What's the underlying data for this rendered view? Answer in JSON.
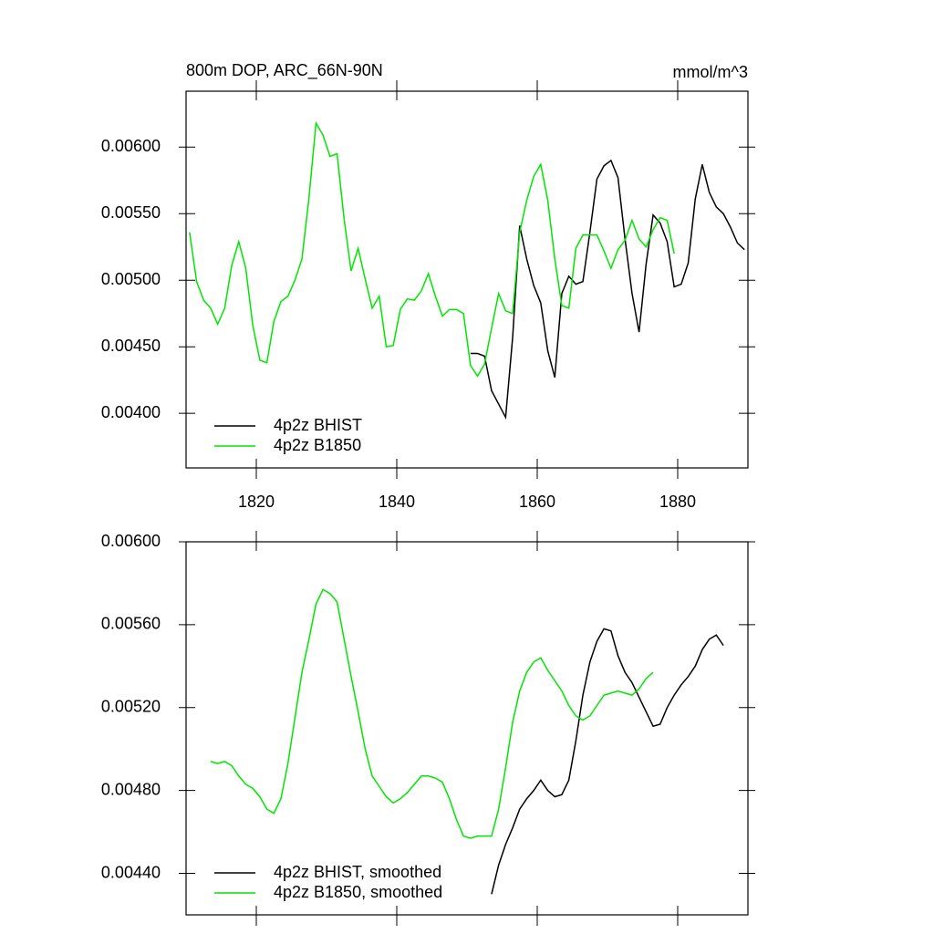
{
  "chart_data": [
    {
      "type": "line",
      "title": "800m DOP, ARC_66N-90N",
      "units": "mmol/m^3",
      "x": [
        1810.5,
        1811.5,
        1812.5,
        1813.5,
        1814.5,
        1815.5,
        1816.5,
        1817.5,
        1818.5,
        1819.5,
        1820.5,
        1821.5,
        1822.5,
        1823.5,
        1824.5,
        1825.5,
        1826.5,
        1827.5,
        1828.5,
        1829.5,
        1830.5,
        1831.5,
        1832.5,
        1833.5,
        1834.5,
        1835.5,
        1836.5,
        1837.5,
        1838.5,
        1839.5,
        1840.5,
        1841.5,
        1842.5,
        1843.5,
        1844.5,
        1845.5,
        1846.5,
        1847.5,
        1848.5,
        1849.5,
        1850.5,
        1851.5,
        1852.5,
        1853.5,
        1854.5,
        1855.5,
        1856.5,
        1857.5,
        1858.5,
        1859.5,
        1860.5,
        1861.5,
        1862.5,
        1863.5,
        1864.5,
        1865.5,
        1866.5,
        1867.5,
        1868.5,
        1869.5,
        1870.5,
        1871.5,
        1872.5,
        1873.5,
        1874.5,
        1875.5,
        1876.5,
        1877.5,
        1878.5,
        1879.5,
        1880.5,
        1881.5,
        1882.5,
        1883.5,
        1884.5,
        1885.5,
        1886.5,
        1887.5,
        1888.5,
        1889.5
      ],
      "xlim": [
        1810,
        1890
      ],
      "xticks": [
        1820,
        1840,
        1860,
        1880
      ],
      "show_xtick_labels": true,
      "ylim": [
        0.00359,
        0.00642
      ],
      "yticks": [
        {
          "value": 0.004,
          "label": "0.00400"
        },
        {
          "value": 0.0045,
          "label": "0.00450"
        },
        {
          "value": 0.005,
          "label": "0.00500"
        },
        {
          "value": 0.0055,
          "label": "0.00550"
        },
        {
          "value": 0.006,
          "label": "0.00600"
        }
      ],
      "legend": "lower left",
      "series": [
        {
          "name": "4p2z BHIST",
          "color": "#000000",
          "values": [
            null,
            null,
            null,
            null,
            null,
            null,
            null,
            null,
            null,
            null,
            null,
            null,
            null,
            null,
            null,
            null,
            null,
            null,
            null,
            null,
            null,
            null,
            null,
            null,
            null,
            null,
            null,
            null,
            null,
            null,
            null,
            null,
            null,
            null,
            null,
            null,
            null,
            null,
            null,
            null,
            0.00445,
            0.00445,
            0.00443,
            0.00417,
            0.00407,
            0.00397,
            0.00457,
            0.00541,
            0.00516,
            0.00496,
            0.00483,
            0.00447,
            0.00427,
            0.0049,
            0.00503,
            0.00497,
            0.00499,
            0.00536,
            0.00576,
            0.00586,
            0.0059,
            0.00577,
            0.00531,
            0.0049,
            0.00461,
            0.00512,
            0.00549,
            0.00543,
            0.00529,
            0.00495,
            0.00497,
            0.00513,
            0.00561,
            0.00587,
            0.00566,
            0.00555,
            0.0055,
            0.0054,
            0.00528,
            0.00523
          ]
        },
        {
          "name": "4p2z B1850",
          "color": "#00e600",
          "values": [
            0.00536,
            0.00499,
            0.00485,
            0.00479,
            0.00467,
            0.00479,
            0.00511,
            0.00529,
            0.00509,
            0.00466,
            0.0044,
            0.00438,
            0.00469,
            0.00484,
            0.00488,
            0.005,
            0.00516,
            0.00562,
            0.00618,
            0.00609,
            0.00593,
            0.00595,
            0.00546,
            0.00507,
            0.00524,
            0.00501,
            0.00479,
            0.00488,
            0.0045,
            0.00451,
            0.00478,
            0.00486,
            0.00485,
            0.00492,
            0.00505,
            0.00488,
            0.00473,
            0.00478,
            0.00478,
            0.00475,
            0.00436,
            0.00428,
            0.00437,
            0.00464,
            0.0049,
            0.00477,
            0.00475,
            0.00536,
            0.0056,
            0.00578,
            0.00587,
            0.0056,
            0.00516,
            0.00481,
            0.00479,
            0.00524,
            0.00534,
            0.00534,
            0.00534,
            0.00522,
            0.00509,
            0.00523,
            0.0053,
            0.00545,
            0.00531,
            0.00525,
            0.00538,
            0.00547,
            0.00545,
            0.0052,
            null,
            null,
            null,
            null,
            null,
            null,
            null,
            null,
            null,
            null
          ]
        }
      ]
    },
    {
      "type": "line",
      "x": [
        1813.5,
        1814.5,
        1815.5,
        1816.5,
        1817.5,
        1818.5,
        1819.5,
        1820.5,
        1821.5,
        1822.5,
        1823.5,
        1824.5,
        1825.5,
        1826.5,
        1827.5,
        1828.5,
        1829.5,
        1830.5,
        1831.5,
        1832.5,
        1833.5,
        1834.5,
        1835.5,
        1836.5,
        1837.5,
        1838.5,
        1839.5,
        1840.5,
        1841.5,
        1842.5,
        1843.5,
        1844.5,
        1845.5,
        1846.5,
        1847.5,
        1848.5,
        1849.5,
        1850.5,
        1851.5,
        1852.5,
        1853.5,
        1854.5,
        1855.5,
        1856.5,
        1857.5,
        1858.5,
        1859.5,
        1860.5,
        1861.5,
        1862.5,
        1863.5,
        1864.5,
        1865.5,
        1866.5,
        1867.5,
        1868.5,
        1869.5,
        1870.5,
        1871.5,
        1872.5,
        1873.5,
        1874.5,
        1875.5,
        1876.5,
        1877.5,
        1878.5,
        1879.5,
        1880.5,
        1881.5,
        1882.5,
        1883.5,
        1884.5,
        1885.5,
        1886.5
      ],
      "xlim": [
        1810,
        1890
      ],
      "xticks": [
        1820,
        1840,
        1860,
        1880
      ],
      "show_xtick_labels": false,
      "ylim": [
        0.0042,
        0.006
      ],
      "yticks": [
        {
          "value": 0.0044,
          "label": "0.00440"
        },
        {
          "value": 0.0048,
          "label": "0.00480"
        },
        {
          "value": 0.0052,
          "label": "0.00520"
        },
        {
          "value": 0.0056,
          "label": "0.00560"
        },
        {
          "value": 0.006,
          "label": "0.00600"
        }
      ],
      "legend": "lower left",
      "series": [
        {
          "name": "4p2z BHIST, smoothed",
          "color": "#000000",
          "values": [
            null,
            null,
            null,
            null,
            null,
            null,
            null,
            null,
            null,
            null,
            null,
            null,
            null,
            null,
            null,
            null,
            null,
            null,
            null,
            null,
            null,
            null,
            null,
            null,
            null,
            null,
            null,
            null,
            null,
            null,
            null,
            null,
            null,
            null,
            null,
            null,
            null,
            null,
            null,
            null,
            0.0043,
            0.00444,
            0.00454,
            0.00462,
            0.00471,
            0.00476,
            0.0048,
            0.00485,
            0.0048,
            0.00477,
            0.00478,
            0.00485,
            0.00504,
            0.00526,
            0.00542,
            0.00552,
            0.00558,
            0.00557,
            0.00545,
            0.00537,
            0.00532,
            0.00525,
            0.00518,
            0.00511,
            0.00512,
            0.0052,
            0.00526,
            0.00531,
            0.00535,
            0.0054,
            0.00548,
            0.00553,
            0.00555,
            0.0055
          ]
        },
        {
          "name": "4p2z B1850, smoothed",
          "color": "#00e600",
          "values": [
            0.00494,
            0.00493,
            0.00494,
            0.00492,
            0.00487,
            0.00483,
            0.00481,
            0.00477,
            0.00471,
            0.00469,
            0.00476,
            0.00493,
            0.00515,
            0.00537,
            0.00553,
            0.0057,
            0.00577,
            0.00575,
            0.00571,
            0.00553,
            0.00535,
            0.00518,
            0.005,
            0.00487,
            0.00482,
            0.00477,
            0.00474,
            0.00476,
            0.00479,
            0.00483,
            0.00487,
            0.00487,
            0.00486,
            0.00484,
            0.00476,
            0.00466,
            0.00458,
            0.00457,
            0.00458,
            0.00458,
            0.00458,
            0.00471,
            0.00491,
            0.00513,
            0.00528,
            0.00537,
            0.00542,
            0.00544,
            0.00538,
            0.00533,
            0.00528,
            0.00521,
            0.00516,
            0.00514,
            0.00516,
            0.00521,
            0.00526,
            0.00527,
            0.00528,
            0.00527,
            0.00526,
            0.00529,
            0.00534,
            0.00537,
            null,
            null,
            null,
            null,
            null,
            null,
            null,
            null,
            null,
            null
          ]
        }
      ]
    }
  ]
}
